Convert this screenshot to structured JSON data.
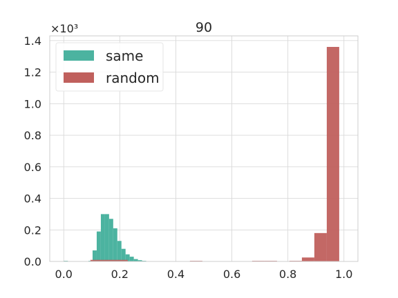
{
  "chart_data": {
    "type": "bar",
    "title": "90",
    "xlabel": "",
    "ylabel": "",
    "y_offset_label": "×10³",
    "xlim": [
      -0.05,
      1.05
    ],
    "ylim": [
      0,
      1.43
    ],
    "xticks": [
      0.0,
      0.2,
      0.4,
      0.6,
      0.8,
      1.0
    ],
    "xtick_labels": [
      "0.0",
      "0.2",
      "0.4",
      "0.6",
      "0.8",
      "1.0"
    ],
    "yticks": [
      0.0,
      0.2,
      0.4,
      0.6,
      0.8,
      1.0,
      1.2,
      1.4
    ],
    "ytick_labels": [
      "0.0",
      "0.2",
      "0.4",
      "0.6",
      "0.8",
      "1.0",
      "1.2",
      "1.4"
    ],
    "grid": true,
    "legend_position": "top-left",
    "series": [
      {
        "name": "same",
        "color": "#4cb3a0",
        "bin_width": 0.0147,
        "bins": [
          {
            "x": 0.0,
            "value": 0.004
          },
          {
            "x": 0.0882,
            "value": 0.004
          },
          {
            "x": 0.1029,
            "value": 0.07
          },
          {
            "x": 0.1176,
            "value": 0.19
          },
          {
            "x": 0.1324,
            "value": 0.3
          },
          {
            "x": 0.1471,
            "value": 0.3
          },
          {
            "x": 0.1618,
            "value": 0.27
          },
          {
            "x": 0.1765,
            "value": 0.21
          },
          {
            "x": 0.1912,
            "value": 0.13
          },
          {
            "x": 0.2059,
            "value": 0.08
          },
          {
            "x": 0.2206,
            "value": 0.045
          },
          {
            "x": 0.2353,
            "value": 0.03
          },
          {
            "x": 0.25,
            "value": 0.015
          },
          {
            "x": 0.2647,
            "value": 0.008
          },
          {
            "x": 0.2794,
            "value": 0.004
          }
        ]
      },
      {
        "name": "random",
        "color": "#c0605d",
        "bin_width": 0.0444,
        "bins": [
          {
            "x": 0.0952,
            "value": 0.01
          },
          {
            "x": 0.1396,
            "value": 0.01
          },
          {
            "x": 0.184,
            "value": 0.01
          },
          {
            "x": 0.4504,
            "value": 0.004
          },
          {
            "x": 0.6724,
            "value": 0.004
          },
          {
            "x": 0.7168,
            "value": 0.004
          },
          {
            "x": 0.8056,
            "value": 0.004
          },
          {
            "x": 0.85,
            "value": 0.025
          },
          {
            "x": 0.8944,
            "value": 0.18
          },
          {
            "x": 0.9388,
            "value": 1.36
          }
        ]
      }
    ]
  }
}
